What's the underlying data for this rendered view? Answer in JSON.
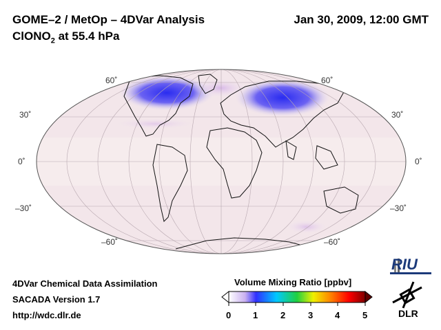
{
  "header": {
    "title": "GOME–2 / MetOp – 4DVar Analysis",
    "species_prefix": "ClONO",
    "species_sub": "2",
    "species_suffix": " at 55.4 hPa",
    "datetime": "Jan 30, 2009, 12:00 GMT"
  },
  "map": {
    "lat_labels_left": [
      "60˚",
      "30˚",
      "0˚",
      "–30˚",
      "–60˚"
    ],
    "lat_labels_right": [
      "60˚",
      "30˚",
      "0˚",
      "–30˚",
      "–60˚"
    ]
  },
  "colorbar": {
    "title": "Volume Mixing Ratio [ppbv]",
    "ticks": [
      "0",
      "1",
      "2",
      "3",
      "4",
      "5"
    ]
  },
  "footer": {
    "line1": "4DVar Chemical Data Assimilation",
    "line2": "SACADA Version 1.7",
    "line3": "http://wdc.dlr.de"
  },
  "logos": {
    "riu": "RIU",
    "dlr": "DLR"
  }
}
